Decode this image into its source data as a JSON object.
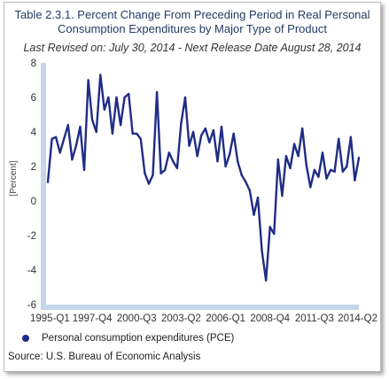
{
  "chart_data": {
    "type": "line",
    "title_line1": "Table 2.3.1. Percent Change From Preceding Period in Real Personal",
    "title_line2": "Consumption Expenditures by Major Type of Product",
    "subtitle": "Last Revised on: July 30, 2014 - Next Release Date August 28, 2014",
    "ylabel": "[Percent]",
    "xlabel": "",
    "ylim": [
      -6,
      8
    ],
    "yticks": [
      -6,
      -4,
      -2,
      0,
      2,
      4,
      6,
      8
    ],
    "xtick_labels": [
      "1995-Q1",
      "1997-Q4",
      "2000-Q3",
      "2003-Q2",
      "2006-Q1",
      "2008-Q4",
      "2011-Q3",
      "2014-Q2"
    ],
    "x": [
      "1995-Q1",
      "1995-Q2",
      "1995-Q3",
      "1995-Q4",
      "1996-Q1",
      "1996-Q2",
      "1996-Q3",
      "1996-Q4",
      "1997-Q1",
      "1997-Q2",
      "1997-Q3",
      "1997-Q4",
      "1998-Q1",
      "1998-Q2",
      "1998-Q3",
      "1998-Q4",
      "1999-Q1",
      "1999-Q2",
      "1999-Q3",
      "1999-Q4",
      "2000-Q1",
      "2000-Q2",
      "2000-Q3",
      "2000-Q4",
      "2001-Q1",
      "2001-Q2",
      "2001-Q3",
      "2001-Q4",
      "2002-Q1",
      "2002-Q2",
      "2002-Q3",
      "2002-Q4",
      "2003-Q1",
      "2003-Q2",
      "2003-Q3",
      "2003-Q4",
      "2004-Q1",
      "2004-Q2",
      "2004-Q3",
      "2004-Q4",
      "2005-Q1",
      "2005-Q2",
      "2005-Q3",
      "2005-Q4",
      "2006-Q1",
      "2006-Q2",
      "2006-Q3",
      "2006-Q4",
      "2007-Q1",
      "2007-Q2",
      "2007-Q3",
      "2007-Q4",
      "2008-Q1",
      "2008-Q2",
      "2008-Q3",
      "2008-Q4",
      "2009-Q1",
      "2009-Q2",
      "2009-Q3",
      "2009-Q4",
      "2010-Q1",
      "2010-Q2",
      "2010-Q3",
      "2010-Q4",
      "2011-Q1",
      "2011-Q2",
      "2011-Q3",
      "2011-Q4",
      "2012-Q1",
      "2012-Q2",
      "2012-Q3",
      "2012-Q4",
      "2013-Q1",
      "2013-Q2",
      "2013-Q3",
      "2013-Q4",
      "2014-Q1",
      "2014-Q2"
    ],
    "series": [
      {
        "name": "Personal consumption expenditures (PCE)",
        "values": [
          1.1,
          3.6,
          3.7,
          2.8,
          3.6,
          4.4,
          2.4,
          3.2,
          4.3,
          1.8,
          7.0,
          4.7,
          4.0,
          7.3,
          5.3,
          6.0,
          3.9,
          6.0,
          4.4,
          6.0,
          6.2,
          3.9,
          3.9,
          3.6,
          1.6,
          1.0,
          1.5,
          6.3,
          1.6,
          1.8,
          2.8,
          2.3,
          1.9,
          4.5,
          6.0,
          3.2,
          4.0,
          2.6,
          3.8,
          4.2,
          3.4,
          4.1,
          2.3,
          4.3,
          2.0,
          2.7,
          3.9,
          2.3,
          1.5,
          1.1,
          0.6,
          -0.8,
          0.2,
          -2.9,
          -4.6,
          -1.5,
          -1.9,
          2.4,
          0.3,
          2.6,
          1.9,
          3.3,
          2.6,
          4.2,
          2.1,
          0.8,
          1.8,
          1.4,
          2.8,
          1.3,
          1.8,
          1.7,
          3.6,
          1.7,
          2.0,
          3.7,
          1.2,
          2.5
        ]
      }
    ],
    "color": "#1f2d86",
    "axis_color": "#c6d6e8",
    "grid": false,
    "legend_position": "bottom-left"
  },
  "legend_label": "Personal consumption expenditures (PCE)",
  "source": "Source: U.S. Bureau of Economic Analysis"
}
